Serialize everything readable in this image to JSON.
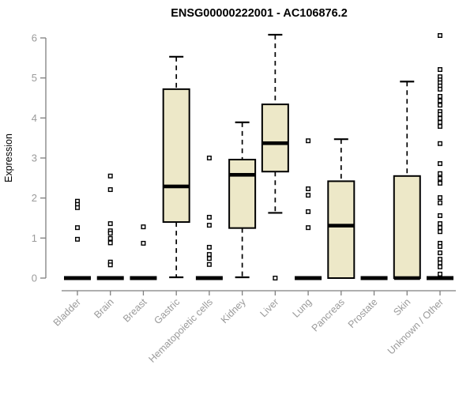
{
  "chart_data": {
    "type": "boxplot",
    "title": "ENSG00000222001 - AC106876.2",
    "ylabel": "Expression",
    "xlabel": "",
    "ylim": [
      0,
      6
    ],
    "yticks": [
      0,
      1,
      2,
      3,
      4,
      5,
      6
    ],
    "grid": false,
    "legend": "none",
    "categories": [
      "Bladder",
      "Brain",
      "Breast",
      "Gastric",
      "Hematopoietic cells",
      "Kidney",
      "Liver",
      "Lung",
      "Pancreas",
      "Prostate",
      "Skin",
      "Unknown / Other"
    ],
    "boxes": [
      {
        "category": "Bladder",
        "low": 0,
        "q1": 0,
        "median": 0,
        "q3": 0,
        "high": 0,
        "outliers": [
          1.92,
          1.84,
          1.76,
          1.26,
          0.97
        ]
      },
      {
        "category": "Brain",
        "low": 0,
        "q1": 0,
        "median": 0,
        "q3": 0,
        "high": 0,
        "outliers": [
          2.55,
          2.21,
          1.36,
          1.18,
          1.12,
          0.99,
          0.88,
          0.4,
          0.33
        ]
      },
      {
        "category": "Breast",
        "low": 0,
        "q1": 0,
        "median": 0,
        "q3": 0,
        "high": 0,
        "outliers": [
          1.28,
          0.87
        ]
      },
      {
        "category": "Gastric",
        "low": 0.02,
        "q1": 1.4,
        "median": 2.29,
        "q3": 4.72,
        "high": 5.53,
        "outliers": []
      },
      {
        "category": "Hematopoietic cells",
        "low": 0,
        "q1": 0,
        "median": 0,
        "q3": 0,
        "high": 0,
        "outliers": [
          3.0,
          1.52,
          1.32,
          0.77,
          0.59,
          0.49,
          0.34
        ]
      },
      {
        "category": "Kidney",
        "low": 0.02,
        "q1": 1.25,
        "median": 2.58,
        "q3": 2.96,
        "high": 3.89,
        "outliers": []
      },
      {
        "category": "Liver",
        "low": 1.63,
        "q1": 2.66,
        "median": 3.37,
        "q3": 4.34,
        "high": 6.08,
        "outliers": [
          0.0
        ]
      },
      {
        "category": "Lung",
        "low": 0,
        "q1": 0,
        "median": 0,
        "q3": 0,
        "high": 0,
        "outliers": [
          3.43,
          2.23,
          2.07,
          1.66,
          1.26
        ]
      },
      {
        "category": "Pancreas",
        "low": 0,
        "q1": 0,
        "median": 1.31,
        "q3": 2.42,
        "high": 3.47,
        "outliers": []
      },
      {
        "category": "Prostate",
        "low": 0,
        "q1": 0,
        "median": 0,
        "q3": 0,
        "high": 0,
        "outliers": []
      },
      {
        "category": "Skin",
        "low": 0,
        "q1": 0,
        "median": 0,
        "q3": 2.55,
        "high": 4.91,
        "outliers": []
      },
      {
        "category": "Unknown / Other",
        "low": 0,
        "q1": 0,
        "median": 0,
        "q3": 0,
        "high": 0,
        "outliers": [
          6.06,
          5.21,
          5.03,
          4.95,
          4.88,
          4.8,
          4.72,
          4.54,
          4.43,
          4.32,
          4.16,
          4.09,
          3.99,
          3.89,
          3.79,
          3.36,
          2.86,
          2.61,
          2.49,
          2.37,
          2.01,
          1.88,
          1.56,
          1.36,
          1.26,
          1.16,
          0.87,
          0.79,
          0.63,
          0.47,
          0.38,
          0.28,
          0.1
        ]
      }
    ],
    "colors": {
      "box_fill": "#ede8c8",
      "box_stroke": "#000000",
      "median": "#000000",
      "whisker": "#000000",
      "outlier_stroke": "#000000",
      "outlier_fill": "#ffffff",
      "axis": "#7f7f7f",
      "tick_label": "#9a9a9a",
      "title": "#0a0a0a",
      "background": "#ffffff"
    }
  }
}
